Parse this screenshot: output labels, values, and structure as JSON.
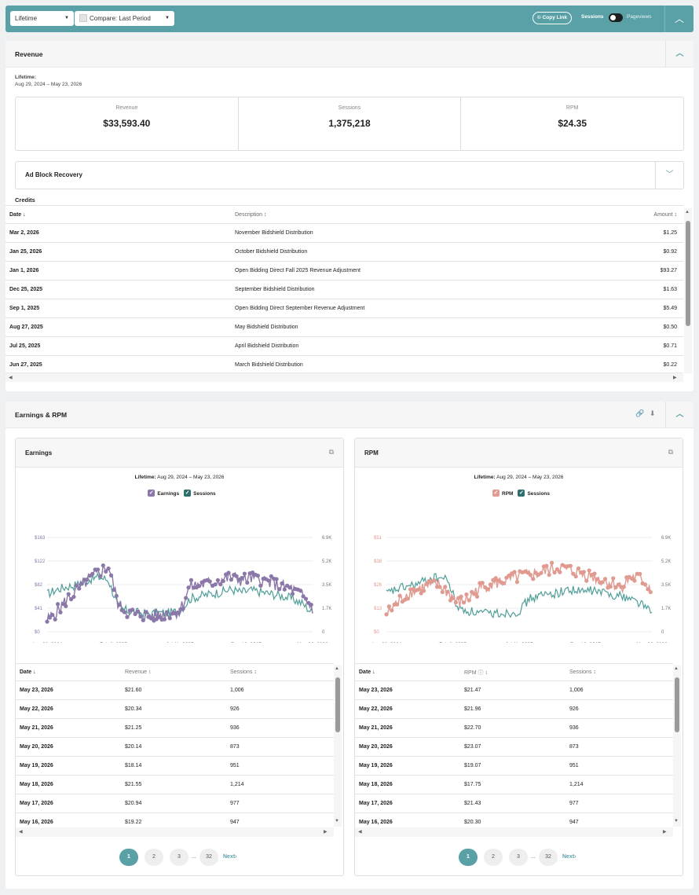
{
  "toolbar": {
    "range_select": "Lifetime",
    "compare_select": "Compare: Last Period",
    "copy_link": "Copy Link",
    "toggle_left": "Sessions",
    "toggle_right": "Pageviews"
  },
  "revenue": {
    "title": "Revenue",
    "lifetime_label": "Lifetime:",
    "date_range": "Aug 29, 2024 – May 23, 2026",
    "stats": [
      {
        "label": "Revenue",
        "value": "$33,593.40"
      },
      {
        "label": "Sessions",
        "value": "1,375,218"
      },
      {
        "label": "RPM",
        "value": "$24.35"
      }
    ],
    "ad_block": "Ad Block Recovery",
    "credits_title": "Credits",
    "credits_headers": [
      "Date",
      "Description",
      "Amount"
    ],
    "credits": [
      {
        "date": "Mar 2, 2026",
        "desc": "November Bidshield Distribution",
        "amount": "$1.25"
      },
      {
        "date": "Jan 25, 2026",
        "desc": "October Bidshield Distribution",
        "amount": "$0.92"
      },
      {
        "date": "Jan 1, 2026",
        "desc": "Open Bidding Direct Fall 2025 Revenue Adjustment",
        "amount": "$93.27"
      },
      {
        "date": "Dec 25, 2025",
        "desc": "September Bidshield Distribution",
        "amount": "$1.63"
      },
      {
        "date": "Sep 1, 2025",
        "desc": "Open Bidding Direct September Revenue Adjustment",
        "amount": "$5.49"
      },
      {
        "date": "Aug 27, 2025",
        "desc": "May Bidshield Distribution",
        "amount": "$0.50"
      },
      {
        "date": "Jul 25, 2025",
        "desc": "April Bidshield Distribution",
        "amount": "$0.71"
      },
      {
        "date": "Jun 27, 2025",
        "desc": "March Bidshield Distribution",
        "amount": "$0.22"
      }
    ]
  },
  "earnings_rpm": {
    "title": "Earnings & RPM",
    "cards": [
      {
        "title": "Earnings",
        "lifetime_label": "Lifetime:",
        "date_range": "Aug 29, 2024 – May 23, 2026",
        "legend": [
          "Earnings",
          "Sessions"
        ],
        "headers": [
          "Date",
          "Revenue",
          "Sessions"
        ],
        "rows": [
          [
            "May 23, 2026",
            "$21.60",
            "1,006"
          ],
          [
            "May 22, 2026",
            "$20.34",
            "926"
          ],
          [
            "May 21, 2026",
            "$21.25",
            "936"
          ],
          [
            "May 20, 2026",
            "$20.14",
            "873"
          ],
          [
            "May 19, 2026",
            "$18.14",
            "951"
          ],
          [
            "May 18, 2026",
            "$21.55",
            "1,214"
          ],
          [
            "May 17, 2026",
            "$20.94",
            "977"
          ],
          [
            "May 16, 2026",
            "$19.22",
            "947"
          ]
        ],
        "pages": [
          "1",
          "2",
          "3",
          "32"
        ],
        "ellipsis": "...",
        "next": "Next›"
      },
      {
        "title": "RPM",
        "lifetime_label": "Lifetime:",
        "date_range": "Aug 29, 2024 – May 23, 2026",
        "legend": [
          "RPM",
          "Sessions"
        ],
        "headers": [
          "Date",
          "RPM",
          "Sessions"
        ],
        "rows": [
          [
            "May 23, 2026",
            "$21.47",
            "1,006"
          ],
          [
            "May 22, 2026",
            "$21.96",
            "926"
          ],
          [
            "May 21, 2026",
            "$22.70",
            "936"
          ],
          [
            "May 20, 2026",
            "$23.07",
            "873"
          ],
          [
            "May 19, 2026",
            "$19.07",
            "951"
          ],
          [
            "May 18, 2026",
            "$17.75",
            "1,214"
          ],
          [
            "May 17, 2026",
            "$21.43",
            "977"
          ],
          [
            "May 16, 2026",
            "$20.30",
            "947"
          ]
        ],
        "pages": [
          "1",
          "2",
          "3",
          "32"
        ],
        "ellipsis": "...",
        "next": "Next›"
      }
    ]
  },
  "chart_data": [
    {
      "type": "line",
      "series": [
        {
          "name": "Earnings"
        },
        {
          "name": "Sessions"
        }
      ],
      "x_ticks": [
        "Aug 29, 2024",
        "Feb 3, 2025",
        "Jul 11, 2025",
        "Dec 16, 2025",
        "May 23, 2026"
      ],
      "y_left_ticks": [
        "$0",
        "$41",
        "$82",
        "$122",
        "$163"
      ],
      "y_right_ticks": [
        "0",
        "1.7K",
        "3.5K",
        "5.2K",
        "6.9K"
      ],
      "ylim_left": [
        0,
        163
      ],
      "ylim_right": [
        0,
        6900
      ],
      "shape_left": [
        0.12,
        0.22,
        0.35,
        0.45,
        0.55,
        0.62,
        0.7,
        0.28,
        0.2,
        0.18,
        0.17,
        0.18,
        0.2,
        0.22,
        0.48,
        0.5,
        0.52,
        0.55,
        0.58,
        0.55,
        0.57,
        0.55,
        0.52,
        0.48,
        0.45,
        0.38,
        0.25
      ],
      "shape_right": [
        0.4,
        0.45,
        0.48,
        0.5,
        0.55,
        0.58,
        0.55,
        0.25,
        0.22,
        0.2,
        0.19,
        0.2,
        0.2,
        0.22,
        0.35,
        0.38,
        0.4,
        0.42,
        0.45,
        0.42,
        0.44,
        0.42,
        0.4,
        0.38,
        0.35,
        0.3,
        0.2
      ],
      "colors": [
        "#8b77a8",
        "#4f9e98"
      ]
    },
    {
      "type": "line",
      "series": [
        {
          "name": "RPM"
        },
        {
          "name": "Sessions"
        }
      ],
      "x_ticks": [
        "Aug 29, 2024",
        "Feb 3, 2025",
        "Jul 11, 2025",
        "Dec 16, 2025",
        "May 23, 2026"
      ],
      "y_left_ticks": [
        "$0",
        "$13",
        "$26",
        "$38",
        "$51"
      ],
      "y_right_ticks": [
        "0",
        "1.7K",
        "3.5K",
        "5.2K",
        "6.9K"
      ],
      "ylim_left": [
        0,
        51
      ],
      "ylim_right": [
        0,
        6900
      ],
      "shape_left": [
        0.18,
        0.3,
        0.4,
        0.45,
        0.48,
        0.5,
        0.42,
        0.3,
        0.35,
        0.45,
        0.5,
        0.52,
        0.55,
        0.58,
        0.6,
        0.62,
        0.66,
        0.68,
        0.65,
        0.62,
        0.6,
        0.55,
        0.52,
        0.48,
        0.58,
        0.55,
        0.45
      ],
      "shape_right": [
        0.4,
        0.45,
        0.48,
        0.5,
        0.55,
        0.58,
        0.55,
        0.25,
        0.22,
        0.2,
        0.19,
        0.2,
        0.2,
        0.22,
        0.35,
        0.38,
        0.4,
        0.42,
        0.45,
        0.42,
        0.44,
        0.42,
        0.4,
        0.38,
        0.35,
        0.3,
        0.2
      ],
      "colors": [
        "#e09a90",
        "#4f9e98"
      ]
    }
  ]
}
